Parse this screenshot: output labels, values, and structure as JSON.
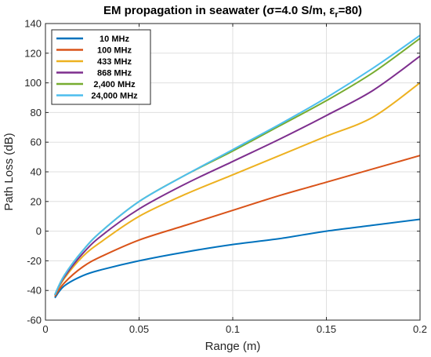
{
  "chart_data": {
    "type": "line",
    "title_main": "EM propagation in seawater (",
    "title_sigma": "σ=4.0 S/m, ε",
    "title_sub": "r",
    "title_end": "=80)",
    "xlabel": "Range (m)",
    "ylabel": "Path Loss (dB)",
    "xlim": [
      0,
      0.2
    ],
    "ylim": [
      -60,
      140
    ],
    "x_ticks": [
      "0",
      "0.05",
      "0.1",
      "0.15",
      "0.2"
    ],
    "x_tick_values": [
      0,
      0.05,
      0.1,
      0.15,
      0.2
    ],
    "y_ticks": [
      "-60",
      "-40",
      "-20",
      "0",
      "20",
      "40",
      "60",
      "80",
      "100",
      "120",
      "140"
    ],
    "y_tick_values": [
      -60,
      -40,
      -20,
      0,
      20,
      40,
      60,
      80,
      100,
      120,
      140
    ],
    "grid": true,
    "legend_position": "top-left",
    "x": [
      0.005,
      0.01,
      0.02,
      0.03,
      0.05,
      0.075,
      0.1,
      0.125,
      0.15,
      0.175,
      0.2
    ],
    "series": [
      {
        "name": "10 MHz",
        "color": "#0072BD",
        "values": [
          -45,
          -37,
          -30,
          -26,
          -20,
          -14,
          -9,
          -5,
          0,
          4,
          8
        ]
      },
      {
        "name": "100 MHz",
        "color": "#D95319",
        "values": [
          -44,
          -35,
          -24,
          -17,
          -6,
          4,
          14,
          24,
          33,
          42,
          51
        ]
      },
      {
        "name": "433 MHz",
        "color": "#EDB120",
        "values": [
          -43,
          -32,
          -17,
          -7,
          10,
          25,
          38,
          51,
          64,
          77,
          100
        ]
      },
      {
        "name": "868 MHz",
        "color": "#7E2F8E",
        "values": [
          -43,
          -31,
          -15,
          -3,
          15,
          32,
          47,
          62,
          78,
          95,
          118
        ]
      },
      {
        "name": "2,400 MHz",
        "color": "#77AC30",
        "values": [
          -43,
          -30,
          -13,
          0,
          20,
          38,
          54,
          71,
          88,
          107,
          130
        ]
      },
      {
        "name": "24,000 MHz",
        "color": "#4DBEEE",
        "values": [
          -43,
          -30,
          -13,
          0,
          20,
          38,
          55,
          72,
          90,
          110,
          132
        ]
      }
    ]
  }
}
